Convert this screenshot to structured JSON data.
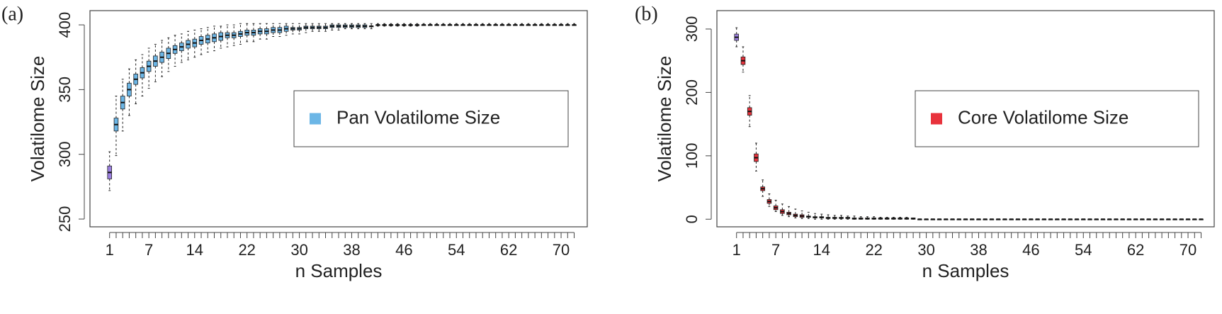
{
  "chart_data": [
    {
      "type": "box",
      "panel_label": "(a)",
      "xlabel": "n Samples",
      "ylabel": "Volatilome Size",
      "categories": [
        1,
        null,
        null,
        null,
        null,
        null,
        7,
        null,
        null,
        null,
        null,
        null,
        null,
        14,
        null,
        null,
        null,
        null,
        null,
        null,
        null,
        22,
        null,
        null,
        null,
        null,
        null,
        null,
        null,
        30,
        null,
        null,
        null,
        null,
        null,
        null,
        null,
        38,
        null,
        null,
        null,
        null,
        null,
        null,
        null,
        46,
        null,
        null,
        null,
        null,
        null,
        null,
        null,
        54,
        null,
        null,
        null,
        null,
        null,
        null,
        null,
        62,
        null,
        null,
        null,
        null,
        null,
        null,
        null,
        70,
        null,
        null
      ],
      "xlim": [
        -2,
        74
      ],
      "ylim": [
        244,
        411
      ],
      "yticks": [
        250,
        300,
        350,
        400
      ],
      "legend": "right",
      "series": [
        {
          "name": "Pan Volatilome Size",
          "color": "#6cb6e6",
          "first_box_color": "#9b7fe0",
          "median": [
            286,
            323,
            340,
            350,
            358,
            363,
            368,
            372,
            375,
            378,
            381,
            383,
            385,
            386,
            388,
            389,
            390,
            391,
            392,
            392,
            393,
            394,
            394,
            395,
            395,
            396,
            396,
            397,
            397,
            397,
            398,
            398,
            398,
            398,
            399,
            399,
            399,
            399,
            399,
            399,
            399,
            400,
            400,
            400,
            400,
            400,
            400,
            400,
            400,
            400,
            400,
            400,
            400,
            400,
            400,
            400,
            400,
            400,
            400,
            400,
            400,
            400,
            400,
            400,
            400,
            400,
            400,
            400,
            400,
            400,
            400,
            400
          ],
          "q1": [
            281,
            318,
            335,
            345,
            354,
            359,
            364,
            368,
            371,
            374,
            378,
            380,
            382,
            383,
            385,
            386,
            387,
            388,
            390,
            390,
            391,
            392,
            392,
            393,
            393,
            394,
            394,
            395,
            396,
            396,
            397,
            397,
            397,
            397,
            398,
            398,
            398,
            398,
            398,
            398,
            399,
            400,
            400,
            400,
            400,
            400,
            400,
            400,
            400,
            400,
            400,
            400,
            400,
            400,
            400,
            400,
            400,
            400,
            400,
            400,
            400,
            400,
            400,
            400,
            400,
            400,
            400,
            400,
            400,
            400,
            400,
            400
          ],
          "q3": [
            291,
            328,
            345,
            355,
            362,
            367,
            372,
            376,
            379,
            382,
            384,
            386,
            388,
            389,
            391,
            392,
            393,
            394,
            394,
            394,
            395,
            396,
            396,
            397,
            397,
            398,
            398,
            399,
            398,
            398,
            399,
            399,
            399,
            399,
            400,
            400,
            400,
            400,
            400,
            400,
            399,
            400,
            400,
            400,
            400,
            400,
            400,
            400,
            400,
            400,
            400,
            400,
            400,
            400,
            400,
            400,
            400,
            400,
            400,
            400,
            400,
            400,
            400,
            400,
            400,
            400,
            400,
            400,
            400,
            400,
            400,
            400
          ],
          "low": [
            272,
            299,
            318,
            330,
            339,
            345,
            351,
            356,
            360,
            364,
            368,
            371,
            373,
            375,
            377,
            379,
            380,
            382,
            383,
            384,
            385,
            387,
            387,
            389,
            389,
            391,
            391,
            392,
            393,
            393,
            394,
            395,
            395,
            395,
            396,
            396,
            397,
            397,
            397,
            397,
            397,
            399,
            399,
            399,
            399,
            399,
            399,
            399,
            400,
            400,
            400,
            400,
            400,
            400,
            400,
            400,
            400,
            400,
            400,
            400,
            400,
            400,
            400,
            400,
            400,
            400,
            400,
            400,
            400,
            400,
            400,
            400
          ],
          "high": [
            302,
            345,
            358,
            366,
            373,
            377,
            382,
            385,
            388,
            390,
            392,
            393,
            395,
            396,
            397,
            398,
            399,
            399,
            400,
            400,
            401,
            401,
            401,
            401,
            401,
            401,
            401,
            401,
            401,
            401,
            401,
            401,
            401,
            401,
            401,
            401,
            401,
            401,
            401,
            401,
            401,
            401,
            401,
            401,
            401,
            401,
            401,
            401,
            401,
            401,
            401,
            401,
            401,
            401,
            401,
            401,
            401,
            401,
            401,
            401,
            401,
            401,
            401,
            401,
            401,
            401,
            401,
            401,
            401,
            401,
            401,
            401
          ]
        }
      ]
    },
    {
      "type": "box",
      "panel_label": "(b)",
      "xlabel": "n Samples",
      "ylabel": "Volatilome Size",
      "categories": [
        1,
        null,
        null,
        null,
        null,
        null,
        7,
        null,
        null,
        null,
        null,
        null,
        null,
        14,
        null,
        null,
        null,
        null,
        null,
        null,
        null,
        22,
        null,
        null,
        null,
        null,
        null,
        null,
        null,
        30,
        null,
        null,
        null,
        null,
        null,
        null,
        null,
        38,
        null,
        null,
        null,
        null,
        null,
        null,
        null,
        46,
        null,
        null,
        null,
        null,
        null,
        null,
        null,
        54,
        null,
        null,
        null,
        null,
        null,
        null,
        null,
        62,
        null,
        null,
        null,
        null,
        null,
        null,
        null,
        70,
        null,
        null
      ],
      "xlim": [
        -2,
        74
      ],
      "ylim": [
        -12,
        329
      ],
      "yticks": [
        0,
        100,
        200,
        300
      ],
      "legend": "right",
      "series": [
        {
          "name": "Core Volatilome Size",
          "color": "#e8323c",
          "first_box_color": "#9b7fe0",
          "median": [
            287,
            250,
            170,
            97,
            48,
            28,
            18,
            12,
            9,
            6,
            5,
            4,
            3,
            3,
            2,
            2,
            2,
            2,
            1,
            1,
            1,
            1,
            1,
            1,
            1,
            1,
            1,
            1,
            0,
            0,
            0,
            0,
            0,
            0,
            0,
            0,
            0,
            0,
            0,
            0,
            0,
            0,
            0,
            0,
            0,
            0,
            0,
            0,
            0,
            0,
            0,
            0,
            0,
            0,
            0,
            0,
            0,
            0,
            0,
            0,
            0,
            0,
            0,
            0,
            0,
            0,
            0,
            0,
            0,
            0,
            0,
            0
          ],
          "q1": [
            282,
            244,
            164,
            91,
            45,
            25,
            15,
            9,
            7,
            4,
            3,
            3,
            2,
            2,
            1,
            1,
            1,
            1,
            0,
            0,
            0,
            0,
            0,
            0,
            0,
            0,
            0,
            0,
            0,
            0,
            0,
            0,
            0,
            0,
            0,
            0,
            0,
            0,
            0,
            0,
            0,
            0,
            0,
            0,
            0,
            0,
            0,
            0,
            0,
            0,
            0,
            0,
            0,
            0,
            0,
            0,
            0,
            0,
            0,
            0,
            0,
            0,
            0,
            0,
            0,
            0,
            0,
            0,
            0,
            0,
            0,
            0
          ],
          "q3": [
            292,
            256,
            176,
            103,
            51,
            31,
            21,
            15,
            11,
            8,
            7,
            5,
            4,
            4,
            3,
            3,
            3,
            3,
            2,
            2,
            2,
            2,
            2,
            2,
            2,
            2,
            2,
            2,
            0,
            0,
            0,
            0,
            0,
            0,
            0,
            0,
            0,
            0,
            0,
            0,
            0,
            0,
            0,
            0,
            0,
            0,
            0,
            0,
            0,
            0,
            0,
            0,
            0,
            0,
            0,
            0,
            0,
            0,
            0,
            0,
            0,
            0,
            0,
            0,
            0,
            0,
            0,
            0,
            0,
            0,
            0,
            0
          ],
          "low": [
            272,
            232,
            146,
            76,
            36,
            20,
            12,
            6,
            4,
            2,
            1,
            1,
            0,
            0,
            0,
            0,
            0,
            0,
            0,
            0,
            0,
            0,
            0,
            0,
            0,
            0,
            0,
            0,
            0,
            0,
            0,
            0,
            0,
            0,
            0,
            0,
            0,
            0,
            0,
            0,
            0,
            0,
            0,
            0,
            0,
            0,
            0,
            0,
            0,
            0,
            0,
            0,
            0,
            0,
            0,
            0,
            0,
            0,
            0,
            0,
            0,
            0,
            0,
            0,
            0,
            0,
            0,
            0,
            0,
            0,
            0,
            0
          ],
          "high": [
            302,
            272,
            195,
            120,
            62,
            40,
            30,
            24,
            20,
            16,
            13,
            11,
            9,
            8,
            7,
            6,
            6,
            5,
            5,
            4,
            4,
            4,
            3,
            3,
            3,
            3,
            3,
            2,
            0,
            0,
            0,
            0,
            0,
            0,
            0,
            0,
            0,
            0,
            0,
            0,
            0,
            0,
            0,
            0,
            0,
            0,
            0,
            0,
            0,
            0,
            0,
            0,
            0,
            0,
            0,
            0,
            0,
            0,
            0,
            0,
            0,
            0,
            0,
            0,
            0,
            0,
            0,
            0,
            0,
            0,
            0,
            0
          ]
        }
      ]
    }
  ]
}
